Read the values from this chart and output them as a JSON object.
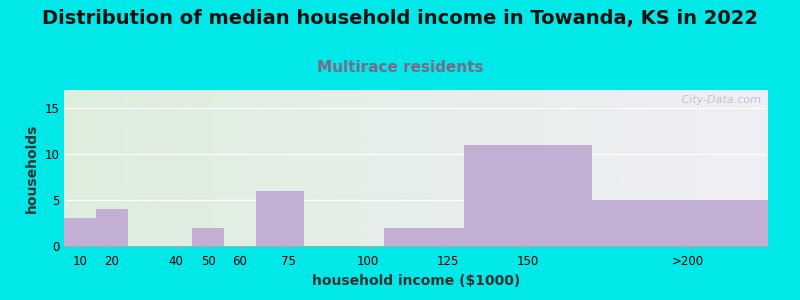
{
  "title": "Distribution of median household income in Towanda, KS in 2022",
  "subtitle": "Multirace residents",
  "xlabel": "household income ($1000)",
  "ylabel": "households",
  "bar_values": [
    3,
    4,
    0,
    2,
    0,
    6,
    0,
    2,
    11,
    5
  ],
  "bar_color": "#c4afd4",
  "bar_left_edges": [
    5,
    15,
    25,
    45,
    55,
    65,
    80,
    105,
    130,
    170
  ],
  "bar_right_edges": [
    15,
    25,
    45,
    55,
    65,
    80,
    105,
    130,
    170,
    225
  ],
  "xlim_left": 5,
  "xlim_right": 225,
  "ylim": [
    0,
    17
  ],
  "yticks": [
    0,
    5,
    10,
    15
  ],
  "xtick_positions": [
    10,
    20,
    40,
    50,
    60,
    75,
    100,
    125,
    150,
    200
  ],
  "xtick_labels": [
    "10",
    "20",
    "40",
    "50",
    "60",
    "75",
    "100",
    "125",
    "150",
    ">200"
  ],
  "bg_outer": "#00e8e8",
  "bg_plot_left": "#ddeedd",
  "bg_plot_right": "#f0eef6",
  "title_fontsize": 14,
  "subtitle_fontsize": 11,
  "subtitle_color": "#7a6a8a",
  "axis_label_fontsize": 10,
  "watermark": " City-Data.com"
}
